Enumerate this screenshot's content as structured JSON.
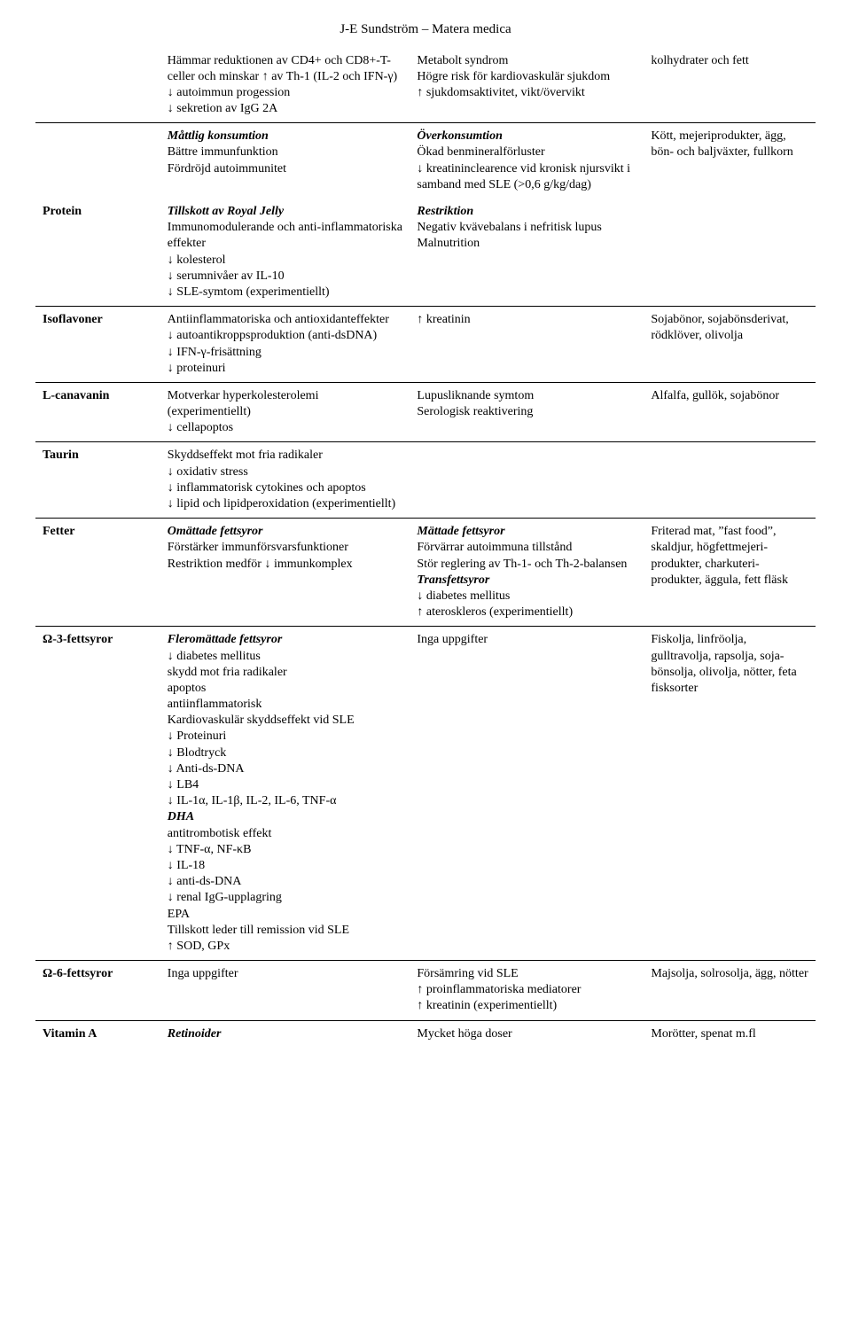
{
  "header": "J-E Sundström – Matera medica",
  "rows": [
    {
      "c1": "",
      "c2": "Hämmar reduktionen av CD4+ och CD8+-T-celler och minskar ↑ av Th-1 (IL-2 och IFN-γ)\n↓ autoimmun progession\n↓ sekretion av IgG 2A",
      "c3": "Metabolt syndrom\nHögre risk för kardiovaskulär sjukdom\n↑ sjukdomsaktivitet, vikt/övervikt",
      "c4": "kolhydrater och fett",
      "section": false
    },
    {
      "c1": "",
      "c2": "<em><b>Måttlig konsumtion</b></em>\nBättre immunfunktion\nFördröjd autoimmunitet",
      "c3": "<em><b>Överkonsumtion</b></em>\nÖkad benmineralförluster\n↓ kreatininclearence vid kronisk njursvikt i samband med SLE (>0,6 g/kg/dag)",
      "c4": "Kött, mejeriprodukter, ägg, bön- och baljväxter, fullkorn",
      "section": true
    },
    {
      "c1": "<b>Protein</b>",
      "c2": "<em><b>Tillskott av Royal Jelly</b></em>\nImmunomodulerande och anti-inflammatoriska effekter\n↓ kolesterol\n↓ serumnivåer av IL-10\n↓ SLE-symtom (experimentiellt)",
      "c3": "<em><b>Restriktion</b></em>\nNegativ kvävebalans i nefritisk lupus\nMalnutrition",
      "c4": "",
      "section": false
    },
    {
      "c1": "<b>Isoflavoner</b>",
      "c2": "Antiinflammatoriska och antioxidanteffekter\n↓ autoantikroppsproduktion (anti-dsDNA)\n↓ IFN-γ-frisättning\n↓ proteinuri",
      "c3": "↑ kreatinin",
      "c4": "Sojabönor, sojabönsderivat, rödklöver, olivolja",
      "section": true
    },
    {
      "c1": "<b>L-canavanin</b>",
      "c2": "Motverkar hyperkolesterolemi (experimentiellt)\n↓ cellapoptos",
      "c3": "Lupusliknande symtom\nSerologisk reaktivering",
      "c4": "Alfalfa, gullök, sojabönor",
      "section": true
    },
    {
      "c1": "<b>Taurin</b>",
      "c2": "Skyddseffekt mot fria radikaler\n↓ oxidativ stress\n↓ inflammatorisk cytokines och apoptos\n↓ lipid och lipidperoxidation (experimentiellt)",
      "c3": "",
      "c4": "",
      "section": true
    },
    {
      "c1": "<b>Fetter</b>",
      "c2": "<em><b>Omättade fettsyror</b></em>\nFörstärker immunförsvarsfunktioner\nRestriktion medför ↓ immunkomplex",
      "c3": "<em><b>Mättade fettsyror</b></em>\nFörvärrar autoimmuna tillstånd\nStör reglering av Th-1- och Th-2-balansen\n<em><b>Transfettsyror</b></em>\n↓ diabetes mellitus\n↑ ateroskleros (experimentiellt)",
      "c4": "Friterad mat, ”fast food”, skaldjur, högfettmejeri-produkter, charkuteri-produkter, äggula, fett fläsk",
      "section": true
    },
    {
      "c1": "<b>Ω-3-fettsyror</b>",
      "c2": "<em><b>Fleromättade fettsyror</b></em>\n↓ diabetes mellitus\nskydd mot fria radikaler\napoptos\nantiinflammatorisk\nKardiovaskulär skyddseffekt vid SLE\n↓ Proteinuri\n↓ Blodtryck\n↓ Anti-ds-DNA\n↓ LB4\n↓ IL-1α, IL-1β, IL-2, IL-6, TNF-α\n<em><b>DHA</b></em>\nantitrombotisk effekt\n↓ TNF-α, NF-κB\n↓ IL-18\n↓ anti-ds-DNA\n↓ renal IgG-upplagring\nEPA\nTillskott leder till remission vid SLE\n↑ SOD, GPx",
      "c3": "Inga uppgifter",
      "c4": "Fiskolja, linfröolja, gulltravolja, rapsolja, soja-bönsolja, olivolja, nötter, feta fisksorter",
      "section": true
    },
    {
      "c1": "<b>Ω-6-fettsyror</b>",
      "c2": "Inga uppgifter",
      "c3": "Försämring vid SLE\n↑ proinflammatoriska mediatorer\n↑ kreatinin (experimentiellt)",
      "c4": "Majsolja, solrosolja, ägg, nötter",
      "section": true
    },
    {
      "c1": "<b>Vitamin A</b>",
      "c2": "<em><b>Retinoider</b></em>",
      "c3": "Mycket höga doser",
      "c4": "Morötter, spenat m.fl",
      "section": true
    }
  ]
}
